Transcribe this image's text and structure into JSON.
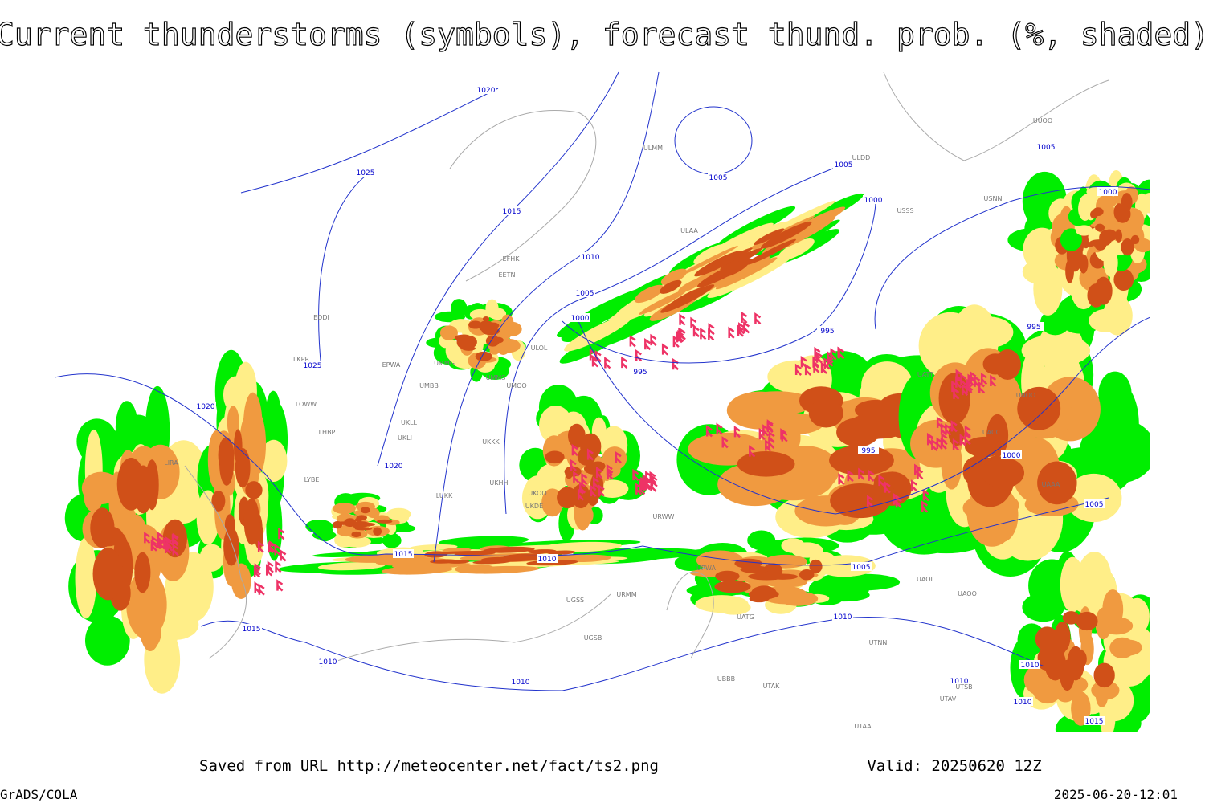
{
  "title": "Current thunderstorms (symbols), forecast thund. prob. (%, shaded)",
  "footer": {
    "source": "Saved from URL http://meteocenter.net/fact/ts2.png",
    "valid": "Valid: 20250620 12Z",
    "software": "GrADS/COLA",
    "timestamp": "2025-06-20-12:01"
  },
  "isobar_labels": [
    1020,
    1025,
    1015,
    1010,
    1005,
    1000,
    995,
    1005,
    1005,
    1000,
    995,
    995,
    1000,
    1005,
    1020,
    1025,
    1020,
    1015,
    1010,
    1005,
    1010,
    1000,
    1005,
    1010,
    1010,
    1010,
    1015,
    1015,
    1010,
    1010,
    995
  ],
  "stations": [
    "EFHK",
    "EETN",
    "ULMM",
    "ULAA",
    "ULDD",
    "EDDI",
    "LKPR",
    "EPWA",
    "UMMG",
    "UMMS",
    "UMOO",
    "ULOL",
    "UMBB",
    "LOWW",
    "LHBP",
    "LIRA",
    "LYBE",
    "UKLL",
    "UKLI",
    "UKKK",
    "UKHH",
    "UKOO",
    "UKDE",
    "LUKK",
    "URWA",
    "UATG",
    "UAOL",
    "UAOO",
    "UTNN",
    "UBBB",
    "UTAK",
    "UTSB",
    "UTAV",
    "UTAA",
    "UGSS",
    "UGSB",
    "URMM",
    "URWW",
    "UUOO",
    "UACC",
    "UAAA",
    "UNOO",
    "USSS",
    "USNN",
    "UATT"
  ]
}
